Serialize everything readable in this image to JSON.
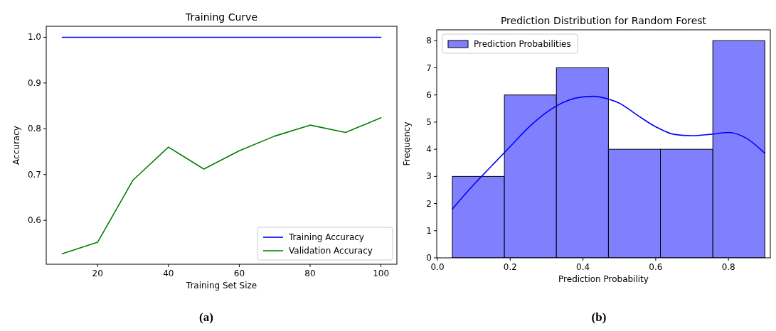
{
  "chart_data": [
    {
      "type": "line",
      "title": "Training Curve",
      "xlabel": "Training Set Size",
      "ylabel": "Accuracy",
      "x": [
        10,
        20,
        30,
        40,
        50,
        60,
        70,
        80,
        90,
        100
      ],
      "series": [
        {
          "name": "Training Accuracy",
          "color": "#0000ff",
          "values": [
            1.0,
            1.0,
            1.0,
            1.0,
            1.0,
            1.0,
            1.0,
            1.0,
            1.0,
            1.0
          ]
        },
        {
          "name": "Validation Accuracy",
          "color": "#008000",
          "values": [
            0.527,
            0.552,
            0.688,
            0.76,
            0.712,
            0.752,
            0.784,
            0.808,
            0.792,
            0.824
          ]
        }
      ],
      "xlim": [
        5.5,
        104.5
      ],
      "xticks": [
        20,
        40,
        60,
        80,
        100
      ],
      "ylim": [
        0.504,
        1.024
      ],
      "yticks": [
        {
          "value": 0.6,
          "label": "0.6"
        },
        {
          "value": 0.7,
          "label": "0.7"
        },
        {
          "value": 0.8,
          "label": "0.8"
        },
        {
          "value": 0.9,
          "label": "0.9"
        },
        {
          "value": 1.0,
          "label": "1.0"
        }
      ],
      "legend": "bottom right",
      "annotations": [
        "(a)"
      ]
    },
    {
      "type": "histogram",
      "title": "Prediction Distribution for Random Forest",
      "xlabel": "Prediction Probability",
      "ylabel": "Frequency",
      "bins": [
        0.041,
        0.184,
        0.327,
        0.47,
        0.613,
        0.757,
        0.9
      ],
      "series": [
        {
          "name": "Prediction Probabilities",
          "color": "#8080ff",
          "values": [
            3,
            6,
            7,
            4,
            4,
            8
          ]
        },
        {
          "type": "line",
          "color": "#0000ff",
          "x": [
            0.041,
            0.1,
            0.15,
            0.2,
            0.25,
            0.3,
            0.35,
            0.4,
            0.43,
            0.47,
            0.5,
            0.55,
            0.6,
            0.65,
            0.7,
            0.75,
            0.8,
            0.85,
            0.9
          ],
          "values": [
            1.8,
            2.7,
            3.4,
            4.1,
            4.8,
            5.36,
            5.75,
            5.93,
            5.95,
            5.85,
            5.7,
            5.25,
            4.83,
            4.55,
            4.5,
            4.55,
            4.62,
            4.4,
            3.85
          ]
        }
      ],
      "xlim": [
        -0.002,
        0.915
      ],
      "xticks": [
        {
          "value": 0,
          "label": "0.0"
        },
        {
          "value": 0.2,
          "label": "0.2"
        },
        {
          "value": 0.4,
          "label": "0.4"
        },
        {
          "value": 0.6,
          "label": "0.6"
        },
        {
          "value": 0.8,
          "label": "0.8"
        }
      ],
      "ylim": [
        0,
        8.4
      ],
      "yticks": [
        0,
        1,
        2,
        3,
        4,
        5,
        6,
        7,
        8
      ],
      "legend": "top left",
      "annotations": [
        "(b)"
      ]
    }
  ]
}
